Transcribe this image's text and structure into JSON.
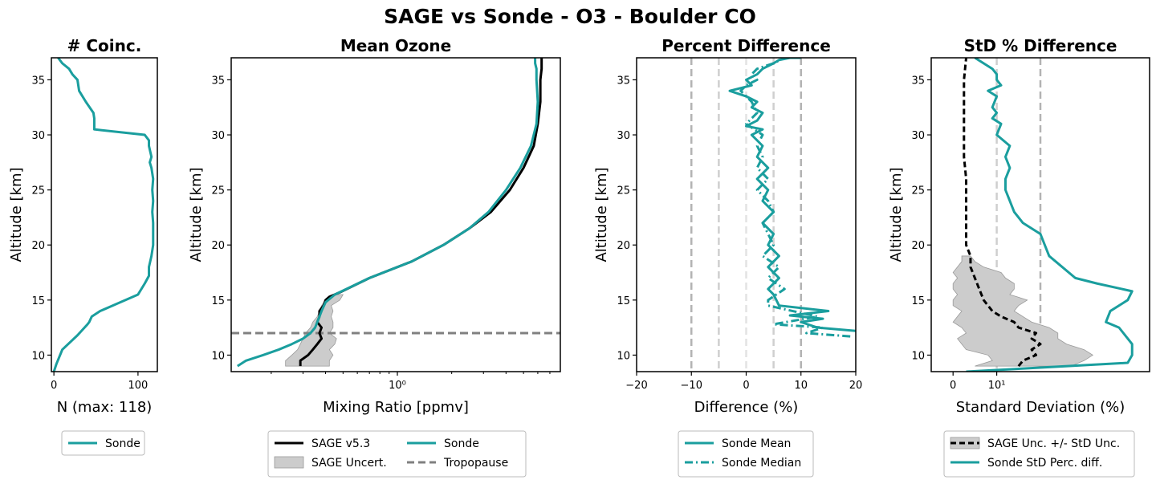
{
  "figure": {
    "title": "SAGE vs Sonde - O3 - Boulder CO"
  },
  "colors": {
    "sonde": "#1a9e9e",
    "sage": "#000000",
    "uncert_fill": "#cccccc",
    "tropopause": "#808080",
    "ref_dark": "#b3b3b3",
    "ref_mid": "#cfcfcf",
    "ref_light": "#e3e3e3"
  },
  "chart_data": [
    {
      "id": "coinc",
      "type": "line",
      "title": "# Coinc.",
      "xlabel": "N (max: 118)",
      "ylabel": "Altitude [km]",
      "xlim": [
        -3,
        123
      ],
      "ylim": [
        8.5,
        37
      ],
      "xticks": [
        0,
        100
      ],
      "xticklabels": [
        "0",
        "100"
      ],
      "yticks": [
        10,
        15,
        20,
        25,
        30,
        35
      ],
      "yticklabels": [
        "10",
        "15",
        "20",
        "25",
        "30",
        "35"
      ],
      "series": [
        {
          "name": "Sonde",
          "color_key": "sonde",
          "dash": "solid",
          "x": [
            0,
            3,
            10,
            28,
            40,
            42,
            45,
            55,
            100,
            108,
            113,
            113,
            116,
            118,
            118,
            118,
            117,
            118,
            117,
            118,
            116,
            114,
            116,
            113,
            113,
            108,
            48,
            48,
            47,
            38,
            30,
            28,
            22,
            18,
            10,
            5
          ],
          "y": [
            8.5,
            9.2,
            10.5,
            11.8,
            12.8,
            13.0,
            13.5,
            14.0,
            15.5,
            16.5,
            17.2,
            18,
            19,
            20,
            21,
            22,
            23,
            24,
            25,
            26,
            27,
            27.5,
            28,
            29,
            29.5,
            30,
            30.5,
            31.5,
            32,
            33,
            34,
            35,
            35.5,
            36,
            36.5,
            37
          ]
        }
      ],
      "legend": [
        {
          "label": "Sonde",
          "style": "line",
          "color_key": "sonde"
        }
      ]
    },
    {
      "id": "mean_ozone",
      "type": "line",
      "title": "Mean Ozone",
      "xlabel": "Mixing Ratio [ppmv]",
      "ylabel": "Altitude [km]",
      "xscale": "log",
      "xlim": [
        0.12,
        8
      ],
      "ylim": [
        8.5,
        37
      ],
      "xticks": [
        1
      ],
      "xticklabels": [
        "10⁰"
      ],
      "yticks": [
        10,
        15,
        20,
        25,
        30,
        35
      ],
      "yticklabels": [
        "10",
        "15",
        "20",
        "25",
        "30",
        "35"
      ],
      "tropopause_altitude": 12,
      "uncertainty_band": {
        "y": [
          9,
          9.5,
          10,
          10.5,
          11,
          11.5,
          12,
          12.5,
          13,
          13.5,
          14,
          14.5,
          15,
          15.5
        ],
        "xlow": [
          0.24,
          0.24,
          0.26,
          0.28,
          0.29,
          0.3,
          0.31,
          0.33,
          0.34,
          0.36,
          0.37,
          0.38,
          0.4,
          0.45
        ],
        "xhigh": [
          0.42,
          0.42,
          0.44,
          0.42,
          0.45,
          0.46,
          0.42,
          0.44,
          0.44,
          0.43,
          0.44,
          0.43,
          0.48,
          0.5
        ]
      },
      "series": [
        {
          "name": "SAGE v5.3",
          "color_key": "sage",
          "dash": "solid",
          "x": [
            0.29,
            0.29,
            0.32,
            0.34,
            0.36,
            0.38,
            0.37,
            0.38,
            0.36,
            0.37,
            0.37,
            0.39,
            0.4,
            0.42,
            0.48,
            0.7,
            1.2,
            1.8,
            2.5,
            3.3,
            4.2,
            5.0,
            5.7,
            6.0,
            6.2,
            6.2,
            6.3,
            6.3
          ],
          "y": [
            9,
            9.5,
            10,
            10.5,
            11,
            11.5,
            12,
            12.5,
            13,
            13.5,
            14,
            14.5,
            15,
            15.3,
            15.7,
            17,
            18.5,
            20,
            21.5,
            23,
            25,
            27,
            29,
            31,
            33,
            35,
            36,
            37
          ]
        },
        {
          "name": "Sonde",
          "color_key": "sonde",
          "dash": "solid",
          "x": [
            0.13,
            0.145,
            0.18,
            0.22,
            0.26,
            0.3,
            0.33,
            0.35,
            0.36,
            0.37,
            0.38,
            0.4,
            0.45,
            0.7,
            1.2,
            1.8,
            2.5,
            3.2,
            4.0,
            4.8,
            5.5,
            5.9,
            6.0,
            5.9,
            5.9,
            5.8,
            5.8
          ],
          "y": [
            9,
            9.5,
            10,
            10.5,
            11,
            11.5,
            12,
            12.5,
            13,
            13.5,
            14,
            14.8,
            15.5,
            17,
            18.5,
            20,
            21.5,
            23,
            25,
            27,
            29,
            31,
            33,
            35,
            36,
            36.5,
            37
          ]
        }
      ],
      "legend": [
        {
          "label": "SAGE v5.3",
          "style": "line",
          "color_key": "sage"
        },
        {
          "label": "Sonde",
          "style": "line",
          "color_key": "sonde"
        },
        {
          "label": "SAGE Uncert.",
          "style": "patch",
          "color_key": "uncert_fill"
        },
        {
          "label": "Tropopause",
          "style": "dash",
          "color_key": "tropopause"
        }
      ]
    },
    {
      "id": "pct_diff",
      "type": "line",
      "title": "Percent Difference",
      "xlabel": "Difference (%)",
      "ylabel": "Altitude [km]",
      "xlim": [
        -20,
        20
      ],
      "ylim": [
        8.5,
        37
      ],
      "xticks": [
        -20,
        -10,
        0,
        10,
        20
      ],
      "xticklabels": [
        "−20",
        "−10",
        "0",
        "10",
        "20"
      ],
      "yticks": [
        10,
        15,
        20,
        25,
        30,
        35
      ],
      "yticklabels": [
        "10",
        "15",
        "20",
        "25",
        "30",
        "35"
      ],
      "reference_lines": [
        {
          "x": -10,
          "color_key": "ref_dark"
        },
        {
          "x": -5,
          "color_key": "ref_mid"
        },
        {
          "x": 0,
          "color_key": "ref_light"
        },
        {
          "x": 5,
          "color_key": "ref_mid"
        },
        {
          "x": 10,
          "color_key": "ref_dark"
        }
      ],
      "series": [
        {
          "name": "Sonde Mean",
          "color_key": "sonde",
          "dash": "solid",
          "x": [
            20,
            13,
            10,
            14,
            8,
            15,
            6,
            5,
            4,
            6,
            5,
            4,
            6,
            4,
            5,
            3,
            5,
            3,
            4,
            2,
            4,
            2,
            3,
            1,
            3,
            0,
            2,
            3,
            1,
            2,
            0,
            -3,
            1,
            0,
            2,
            3,
            5,
            6,
            8,
            10
          ],
          "y": [
            12.2,
            12.5,
            13,
            13.3,
            13.6,
            14,
            14.5,
            15.5,
            16,
            17,
            17.5,
            18,
            19,
            20,
            21,
            22,
            23,
            24,
            25,
            26,
            27,
            28,
            29,
            30,
            30.5,
            30.8,
            31.3,
            32,
            32.5,
            33,
            33.5,
            34,
            34.5,
            35,
            35.5,
            36,
            36.5,
            36.8,
            37,
            37
          ]
        },
        {
          "name": "Sonde Median",
          "color_key": "sonde",
          "dash": "dashdot",
          "x": [
            19,
            11,
            14,
            5,
            13,
            4,
            4,
            7,
            4,
            6,
            3,
            5,
            4,
            3,
            5,
            4,
            2,
            4,
            2,
            3,
            2,
            3,
            0,
            2,
            1,
            -1,
            0,
            2,
            1,
            2,
            5,
            7
          ],
          "y": [
            11.7,
            12,
            12.5,
            12.8,
            13.5,
            14.5,
            15,
            16,
            17,
            18,
            19,
            20,
            21,
            22,
            23,
            24,
            25,
            26,
            27,
            28,
            29,
            30,
            31,
            32,
            33,
            34,
            34.5,
            35,
            35.5,
            36,
            36.5,
            37
          ]
        }
      ],
      "legend": [
        {
          "label": "Sonde Mean",
          "style": "line",
          "color_key": "sonde"
        },
        {
          "label": "Sonde Median",
          "style": "dashdot",
          "color_key": "sonde"
        }
      ]
    },
    {
      "id": "std_diff",
      "type": "line",
      "title": "StD % Difference",
      "xlabel": "Standard Deviation (%)",
      "ylabel": "Altitude [km]",
      "xlim": [
        -5,
        45
      ],
      "ylim": [
        8.5,
        37
      ],
      "xticks": [
        0,
        10
      ],
      "xticklabels": [
        "0",
        "10¹"
      ],
      "yticks": [
        10,
        15,
        20,
        25,
        30,
        35
      ],
      "yticklabels": [
        "10",
        "15",
        "20",
        "25",
        "30",
        "35"
      ],
      "reference_lines": [
        {
          "x": 10,
          "color_key": "ref_mid"
        },
        {
          "x": 20,
          "color_key": "ref_dark"
        }
      ],
      "uncertainty_band": {
        "y": [
          9,
          9.5,
          10,
          10.5,
          11,
          11.5,
          12,
          12.5,
          13,
          13.5,
          14,
          14.5,
          15,
          15.5,
          16,
          16.5,
          17,
          17.5,
          18,
          18.5,
          19
        ],
        "xlow": [
          5,
          9,
          8,
          3,
          2,
          1,
          3,
          2,
          0,
          1,
          2,
          0,
          0,
          1,
          0,
          0,
          1,
          0,
          1,
          2,
          2
        ],
        "xhigh": [
          27,
          30,
          32,
          30,
          26,
          24,
          24,
          22,
          18,
          16,
          14,
          15,
          17,
          13,
          14,
          14,
          12,
          11,
          7,
          5,
          4
        ]
      },
      "series": [
        {
          "name": "SAGE Unc. +/- StD Unc.",
          "color_key": "sage",
          "dash": "dashed",
          "x": [
            15,
            16,
            19,
            18,
            20,
            18,
            19,
            15,
            14,
            11,
            9,
            7,
            6,
            5,
            4,
            4,
            3,
            3,
            3,
            3,
            2.5,
            2.5,
            2.5,
            2.5,
            3
          ],
          "y": [
            9,
            9.5,
            10,
            10.5,
            11,
            11.5,
            12,
            12.5,
            13,
            13.5,
            14,
            15,
            16,
            17,
            18,
            19,
            20,
            22,
            24,
            26,
            28,
            30,
            32,
            35,
            37
          ]
        },
        {
          "name": "Sonde StD Perc. diff.",
          "color_key": "sonde",
          "dash": "solid",
          "x": [
            3,
            17,
            40,
            41,
            41,
            40,
            38,
            35,
            36,
            40,
            41,
            33,
            28,
            22,
            20,
            16,
            14,
            13,
            12,
            12,
            13,
            12,
            13,
            10,
            11,
            9,
            10,
            9,
            10,
            8,
            11,
            10,
            10,
            9,
            7,
            5
          ],
          "y": [
            8.5,
            8.8,
            9.3,
            10,
            11,
            11.5,
            12.5,
            13,
            14,
            15,
            15.8,
            16.5,
            17,
            19,
            21,
            22,
            23,
            24,
            25,
            26,
            27,
            28,
            29,
            30,
            31,
            31.5,
            32,
            32.5,
            33.5,
            34,
            34.5,
            35,
            35.5,
            36,
            36.5,
            37
          ]
        }
      ],
      "legend": [
        {
          "label": "SAGE Unc. +/- StD Unc.",
          "style": "dashpatch",
          "color_key": "sage"
        },
        {
          "label": "Sonde StD Perc. diff.",
          "style": "line",
          "color_key": "sonde"
        }
      ]
    }
  ]
}
